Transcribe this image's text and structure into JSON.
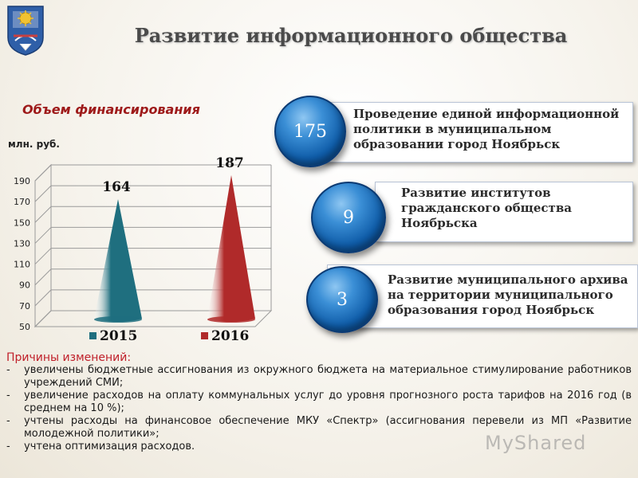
{
  "header": {
    "title": "Развитие информационного общества"
  },
  "section": {
    "heading": "Объем финансирования",
    "unit_label": "млн. руб."
  },
  "chart_data": {
    "type": "bar",
    "categories": [
      "2015",
      "2016"
    ],
    "values": [
      164,
      187
    ],
    "data_labels": [
      "164",
      "187"
    ],
    "series_colors": [
      "#1f6f7f",
      "#b02a2a"
    ],
    "legend": [
      "2015",
      "2016"
    ],
    "legend_position": "bottom",
    "ylabel": "млн. руб.",
    "yticks": [
      "50",
      "70",
      "90",
      "110",
      "130",
      "150",
      "170",
      "190"
    ],
    "ylim": [
      50,
      190
    ],
    "grid": true
  },
  "funding_items": [
    {
      "value": "175",
      "text_lines": [
        "Проведение единой информационной",
        "политики в муниципальном",
        "образовании город Ноябрьск"
      ]
    },
    {
      "value": "9",
      "text_lines": [
        "Развитие институтов",
        "гражданского общества",
        "Ноябрьска"
      ]
    },
    {
      "value": "3",
      "text_lines": [
        "Развитие муниципального архива",
        "на территории муниципального",
        "образования город Ноябрьск"
      ]
    }
  ],
  "reasons": {
    "title": "Причины изменений:",
    "items": [
      {
        "dash": "-",
        "text": "увеличены бюджетные ассигнования из окружного бюджета на материальное стимулирование работников учреждений СМИ;"
      },
      {
        "dash": "-",
        "text": "увеличение расходов на оплату коммунальных услуг до уровня прогнозного роста тарифов на 2016 год (в среднем на 10 %);"
      },
      {
        "dash": "-",
        "text": "учтены расходы на финансовое обеспечение МКУ «Спектр» (ассигнования перевели из МП «Развитие молодежной политики»;"
      },
      {
        "dash": "-",
        "text": "учтена оптимизация расходов."
      }
    ]
  },
  "watermark": "MyShared",
  "colors": {
    "accent_red": "#9e1a1a",
    "circle_blue": "#0f5ca8",
    "bar_2015": "#1f6f7f",
    "bar_2016": "#b02a2a"
  }
}
